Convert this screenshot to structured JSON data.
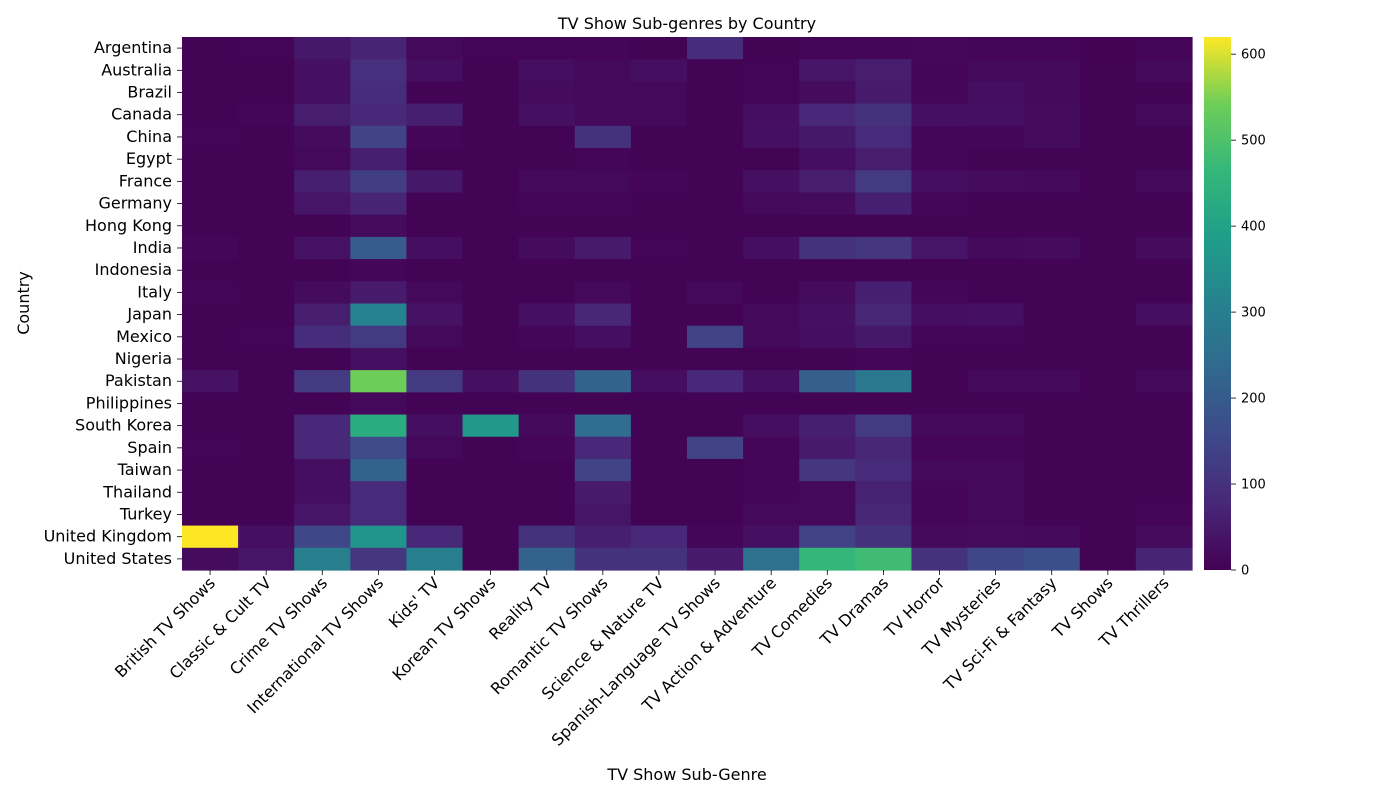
{
  "chart_data": {
    "type": "heatmap",
    "title": "TV Show Sub-genres by Country",
    "xlabel": "TV Show Sub-Genre",
    "ylabel": "Country",
    "categories": [
      "British TV Shows",
      "Classic & Cult TV",
      "Crime TV Shows",
      "International TV Shows",
      "Kids' TV",
      "Korean TV Shows",
      "Reality TV",
      "Romantic TV Shows",
      "Science & Nature TV",
      "Spanish-Language TV Shows",
      "TV Action & Adventure",
      "TV Comedies",
      "TV Dramas",
      "TV Horror",
      "TV Mysteries",
      "TV Sci-Fi & Fantasy",
      "TV Shows",
      "TV Thrillers"
    ],
    "rows": [
      "Argentina",
      "Australia",
      "Brazil",
      "Canada",
      "China",
      "Egypt",
      "France",
      "Germany",
      "Hong Kong",
      "India",
      "Indonesia",
      "Italy",
      "Japan",
      "Mexico",
      "Nigeria",
      "Pakistan",
      "Philippines",
      "South Korea",
      "Spain",
      "Taiwan",
      "Thailand",
      "Turkey",
      "United Kingdom",
      "United States"
    ],
    "values": [
      [
        5,
        8,
        45,
        70,
        15,
        8,
        6,
        10,
        5,
        90,
        5,
        8,
        10,
        12,
        8,
        6,
        3,
        8
      ],
      [
        5,
        5,
        30,
        95,
        25,
        5,
        25,
        15,
        25,
        5,
        8,
        40,
        55,
        10,
        15,
        15,
        5,
        15
      ],
      [
        5,
        5,
        30,
        90,
        5,
        5,
        20,
        15,
        15,
        5,
        8,
        20,
        50,
        10,
        25,
        15,
        5,
        5
      ],
      [
        5,
        10,
        55,
        80,
        60,
        5,
        30,
        15,
        15,
        5,
        25,
        80,
        100,
        30,
        30,
        20,
        5,
        15
      ],
      [
        8,
        5,
        20,
        140,
        10,
        5,
        5,
        100,
        5,
        5,
        30,
        45,
        85,
        8,
        10,
        20,
        5,
        5
      ],
      [
        5,
        5,
        15,
        60,
        5,
        5,
        5,
        10,
        5,
        5,
        5,
        25,
        55,
        10,
        5,
        5,
        5,
        5
      ],
      [
        5,
        5,
        60,
        130,
        45,
        5,
        15,
        15,
        10,
        5,
        30,
        55,
        120,
        25,
        20,
        15,
        5,
        15
      ],
      [
        5,
        5,
        40,
        70,
        5,
        5,
        10,
        8,
        5,
        5,
        15,
        20,
        60,
        10,
        5,
        5,
        5,
        5
      ],
      [
        5,
        5,
        5,
        20,
        5,
        5,
        5,
        5,
        5,
        5,
        5,
        5,
        5,
        5,
        5,
        5,
        5,
        5
      ],
      [
        10,
        5,
        35,
        200,
        25,
        5,
        20,
        50,
        8,
        5,
        25,
        100,
        110,
        40,
        15,
        20,
        5,
        20
      ],
      [
        5,
        5,
        5,
        10,
        5,
        5,
        5,
        5,
        5,
        5,
        5,
        5,
        5,
        5,
        5,
        5,
        5,
        5
      ],
      [
        8,
        5,
        20,
        50,
        15,
        5,
        5,
        15,
        5,
        15,
        5,
        20,
        60,
        10,
        5,
        5,
        5,
        5
      ],
      [
        5,
        5,
        55,
        310,
        35,
        5,
        30,
        75,
        5,
        5,
        15,
        30,
        75,
        25,
        30,
        5,
        5,
        25
      ],
      [
        5,
        8,
        90,
        120,
        15,
        5,
        10,
        25,
        5,
        140,
        15,
        25,
        45,
        8,
        8,
        5,
        5,
        5
      ],
      [
        5,
        5,
        5,
        30,
        5,
        5,
        5,
        5,
        5,
        5,
        5,
        5,
        10,
        5,
        5,
        5,
        5,
        5
      ],
      [
        35,
        5,
        120,
        540,
        120,
        30,
        100,
        220,
        25,
        80,
        30,
        210,
        280,
        5,
        15,
        15,
        5,
        15
      ],
      [
        5,
        5,
        5,
        15,
        5,
        5,
        5,
        5,
        5,
        5,
        5,
        5,
        5,
        5,
        5,
        5,
        5,
        5
      ],
      [
        5,
        5,
        80,
        430,
        25,
        370,
        15,
        250,
        5,
        5,
        25,
        60,
        120,
        15,
        15,
        5,
        5,
        5
      ],
      [
        8,
        5,
        80,
        160,
        15,
        5,
        10,
        80,
        5,
        140,
        10,
        50,
        75,
        8,
        10,
        5,
        5,
        5
      ],
      [
        5,
        5,
        25,
        220,
        5,
        5,
        5,
        140,
        5,
        5,
        10,
        110,
        85,
        15,
        15,
        5,
        5,
        5
      ],
      [
        5,
        5,
        25,
        85,
        5,
        5,
        5,
        50,
        5,
        5,
        10,
        15,
        65,
        10,
        15,
        5,
        5,
        5
      ],
      [
        5,
        5,
        40,
        85,
        5,
        5,
        5,
        40,
        5,
        5,
        15,
        15,
        75,
        10,
        15,
        5,
        5,
        10
      ],
      [
        620,
        30,
        150,
        360,
        80,
        5,
        100,
        60,
        80,
        10,
        30,
        140,
        100,
        15,
        20,
        15,
        5,
        20
      ],
      [
        20,
        40,
        300,
        110,
        300,
        5,
        220,
        100,
        100,
        50,
        260,
        460,
        480,
        100,
        150,
        170,
        5,
        70
      ]
    ],
    "colorbar": {
      "colormap": "viridis",
      "range": [
        0,
        620
      ],
      "ticks": [
        0,
        100,
        200,
        300,
        400,
        500,
        600
      ]
    },
    "grid": false
  }
}
